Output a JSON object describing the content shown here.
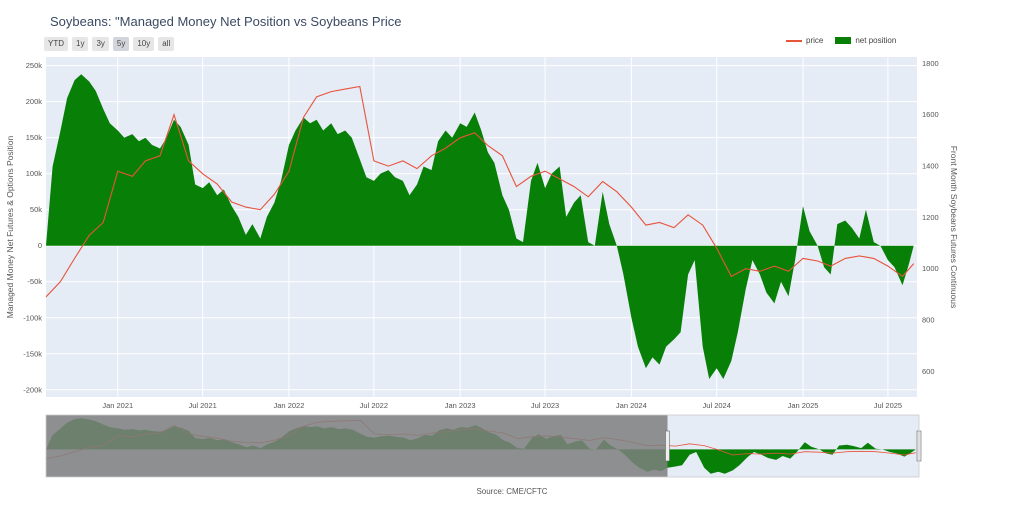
{
  "title": "Soybeans: \"Managed Money Net Position vs Soybeans Price",
  "range_buttons": [
    "YTD",
    "1y",
    "3y",
    "5y",
    "10y",
    "all"
  ],
  "active_range": "5y",
  "legend": {
    "price": "price",
    "net": "net position"
  },
  "source": "Source: CME/CFTC",
  "colors": {
    "price": "#e8533b",
    "net": "#088008",
    "plot_bg": "#e5ecf6",
    "range_mask": "#7f7f7f"
  },
  "chart_data": {
    "type": "area",
    "x_start": "2020-08-01",
    "x_end": "2025-09-01",
    "ylabel": "Managed Money Net Futures & Options Position",
    "y2label": "Front Month Soybeans Futures Continuous",
    "ylim": [
      -210000,
      262000
    ],
    "y2lim": [
      500,
      1825
    ],
    "yticks": [
      250000,
      200000,
      150000,
      100000,
      50000,
      0,
      -50000,
      -100000,
      -150000,
      -200000
    ],
    "ytick_labels": [
      "250k",
      "200k",
      "150k",
      "100k",
      "50k",
      "0",
      "-50k",
      "-100k",
      "-150k",
      "-200k"
    ],
    "y2ticks": [
      1800,
      1600,
      1400,
      1200,
      1000,
      800,
      600
    ],
    "y2tick_labels": [
      "1800",
      "1600",
      "1400",
      "1200",
      "1000",
      "800",
      "600"
    ],
    "xticks": [
      "2021-01-01",
      "2021-07-01",
      "2022-01-01",
      "2022-07-01",
      "2023-01-01",
      "2023-07-01",
      "2024-01-01",
      "2024-07-01",
      "2025-01-01",
      "2025-07-01"
    ],
    "xtick_labels": [
      "Jan 2021",
      "Jul 2021",
      "Jan 2022",
      "Jul 2022",
      "Jan 2023",
      "Jul 2023",
      "Jan 2024",
      "Jul 2024",
      "Jan 2025",
      "Jul 2025"
    ],
    "rangeslider": {
      "visible_from": "2024-03-15",
      "visible_to": "2025-09-01"
    },
    "series": [
      {
        "name": "net position",
        "axis": "left",
        "fill": "tozero",
        "points": [
          [
            "2020-08-01",
            0
          ],
          [
            "2020-08-15",
            110000
          ],
          [
            "2020-09-01",
            160000
          ],
          [
            "2020-09-15",
            205000
          ],
          [
            "2020-10-01",
            230000
          ],
          [
            "2020-10-15",
            238000
          ],
          [
            "2020-11-01",
            228000
          ],
          [
            "2020-11-15",
            215000
          ],
          [
            "2020-12-01",
            190000
          ],
          [
            "2020-12-15",
            170000
          ],
          [
            "2021-01-01",
            160000
          ],
          [
            "2021-01-15",
            150000
          ],
          [
            "2021-02-01",
            155000
          ],
          [
            "2021-02-15",
            145000
          ],
          [
            "2021-03-01",
            150000
          ],
          [
            "2021-03-15",
            140000
          ],
          [
            "2021-04-01",
            135000
          ],
          [
            "2021-04-15",
            150000
          ],
          [
            "2021-05-01",
            175000
          ],
          [
            "2021-05-15",
            165000
          ],
          [
            "2021-06-01",
            140000
          ],
          [
            "2021-06-15",
            85000
          ],
          [
            "2021-07-01",
            80000
          ],
          [
            "2021-07-15",
            88000
          ],
          [
            "2021-08-01",
            70000
          ],
          [
            "2021-08-15",
            78000
          ],
          [
            "2021-09-01",
            55000
          ],
          [
            "2021-09-15",
            40000
          ],
          [
            "2021-10-01",
            15000
          ],
          [
            "2021-10-15",
            30000
          ],
          [
            "2021-11-01",
            10000
          ],
          [
            "2021-11-15",
            40000
          ],
          [
            "2021-12-01",
            60000
          ],
          [
            "2021-12-15",
            90000
          ],
          [
            "2022-01-01",
            140000
          ],
          [
            "2022-01-15",
            160000
          ],
          [
            "2022-02-01",
            178000
          ],
          [
            "2022-02-15",
            170000
          ],
          [
            "2022-03-01",
            175000
          ],
          [
            "2022-03-15",
            160000
          ],
          [
            "2022-04-01",
            170000
          ],
          [
            "2022-04-15",
            155000
          ],
          [
            "2022-05-01",
            160000
          ],
          [
            "2022-05-15",
            150000
          ],
          [
            "2022-06-01",
            120000
          ],
          [
            "2022-06-15",
            95000
          ],
          [
            "2022-07-01",
            90000
          ],
          [
            "2022-07-15",
            100000
          ],
          [
            "2022-08-01",
            105000
          ],
          [
            "2022-08-15",
            95000
          ],
          [
            "2022-09-01",
            90000
          ],
          [
            "2022-09-15",
            70000
          ],
          [
            "2022-10-01",
            85000
          ],
          [
            "2022-10-15",
            110000
          ],
          [
            "2022-11-01",
            105000
          ],
          [
            "2022-11-15",
            145000
          ],
          [
            "2022-12-01",
            160000
          ],
          [
            "2022-12-15",
            150000
          ],
          [
            "2023-01-01",
            170000
          ],
          [
            "2023-01-15",
            165000
          ],
          [
            "2023-02-01",
            185000
          ],
          [
            "2023-02-15",
            160000
          ],
          [
            "2023-03-01",
            130000
          ],
          [
            "2023-03-15",
            115000
          ],
          [
            "2023-04-01",
            70000
          ],
          [
            "2023-04-15",
            50000
          ],
          [
            "2023-05-01",
            10000
          ],
          [
            "2023-05-15",
            5000
          ],
          [
            "2023-06-01",
            90000
          ],
          [
            "2023-06-15",
            115000
          ],
          [
            "2023-07-01",
            80000
          ],
          [
            "2023-07-15",
            100000
          ],
          [
            "2023-08-01",
            110000
          ],
          [
            "2023-08-15",
            40000
          ],
          [
            "2023-09-01",
            60000
          ],
          [
            "2023-09-15",
            70000
          ],
          [
            "2023-10-01",
            5000
          ],
          [
            "2023-10-15",
            0
          ],
          [
            "2023-11-01",
            75000
          ],
          [
            "2023-11-15",
            30000
          ],
          [
            "2023-12-01",
            0
          ],
          [
            "2023-12-15",
            -40000
          ],
          [
            "2024-01-01",
            -100000
          ],
          [
            "2024-01-15",
            -140000
          ],
          [
            "2024-02-01",
            -170000
          ],
          [
            "2024-02-15",
            -155000
          ],
          [
            "2024-03-01",
            -165000
          ],
          [
            "2024-03-15",
            -140000
          ],
          [
            "2024-04-01",
            -130000
          ],
          [
            "2024-04-15",
            -120000
          ],
          [
            "2024-05-01",
            -40000
          ],
          [
            "2024-05-15",
            -20000
          ],
          [
            "2024-06-01",
            -140000
          ],
          [
            "2024-06-15",
            -185000
          ],
          [
            "2024-07-01",
            -170000
          ],
          [
            "2024-07-15",
            -185000
          ],
          [
            "2024-08-01",
            -160000
          ],
          [
            "2024-08-15",
            -120000
          ],
          [
            "2024-09-01",
            -60000
          ],
          [
            "2024-09-15",
            -20000
          ],
          [
            "2024-10-01",
            -40000
          ],
          [
            "2024-10-15",
            -65000
          ],
          [
            "2024-11-01",
            -80000
          ],
          [
            "2024-11-15",
            -50000
          ],
          [
            "2024-12-01",
            -70000
          ],
          [
            "2024-12-15",
            -20000
          ],
          [
            "2025-01-01",
            55000
          ],
          [
            "2025-01-15",
            20000
          ],
          [
            "2025-02-01",
            0
          ],
          [
            "2025-02-15",
            -30000
          ],
          [
            "2025-03-01",
            -40000
          ],
          [
            "2025-03-15",
            30000
          ],
          [
            "2025-04-01",
            35000
          ],
          [
            "2025-04-15",
            25000
          ],
          [
            "2025-05-01",
            10000
          ],
          [
            "2025-05-15",
            50000
          ],
          [
            "2025-06-01",
            5000
          ],
          [
            "2025-06-15",
            0
          ],
          [
            "2025-07-01",
            -20000
          ],
          [
            "2025-07-15",
            -30000
          ],
          [
            "2025-08-01",
            -55000
          ],
          [
            "2025-08-15",
            -25000
          ],
          [
            "2025-08-25",
            0
          ]
        ]
      },
      {
        "name": "price",
        "axis": "right",
        "type": "line",
        "points": [
          [
            "2020-08-01",
            890
          ],
          [
            "2020-09-01",
            950
          ],
          [
            "2020-10-01",
            1040
          ],
          [
            "2020-11-01",
            1130
          ],
          [
            "2020-12-01",
            1180
          ],
          [
            "2021-01-01",
            1380
          ],
          [
            "2021-02-01",
            1360
          ],
          [
            "2021-03-01",
            1420
          ],
          [
            "2021-04-01",
            1440
          ],
          [
            "2021-05-01",
            1600
          ],
          [
            "2021-06-01",
            1420
          ],
          [
            "2021-07-01",
            1370
          ],
          [
            "2021-08-01",
            1330
          ],
          [
            "2021-09-01",
            1260
          ],
          [
            "2021-10-01",
            1240
          ],
          [
            "2021-11-01",
            1230
          ],
          [
            "2021-12-01",
            1290
          ],
          [
            "2022-01-01",
            1380
          ],
          [
            "2022-02-01",
            1590
          ],
          [
            "2022-03-01",
            1670
          ],
          [
            "2022-04-01",
            1690
          ],
          [
            "2022-05-01",
            1700
          ],
          [
            "2022-06-01",
            1710
          ],
          [
            "2022-07-01",
            1420
          ],
          [
            "2022-08-01",
            1400
          ],
          [
            "2022-09-01",
            1420
          ],
          [
            "2022-10-01",
            1390
          ],
          [
            "2022-11-01",
            1440
          ],
          [
            "2022-12-01",
            1470
          ],
          [
            "2023-01-01",
            1510
          ],
          [
            "2023-02-01",
            1530
          ],
          [
            "2023-03-01",
            1480
          ],
          [
            "2023-04-01",
            1440
          ],
          [
            "2023-05-01",
            1320
          ],
          [
            "2023-06-01",
            1360
          ],
          [
            "2023-07-01",
            1380
          ],
          [
            "2023-08-01",
            1350
          ],
          [
            "2023-09-01",
            1320
          ],
          [
            "2023-10-01",
            1280
          ],
          [
            "2023-11-01",
            1340
          ],
          [
            "2023-12-01",
            1300
          ],
          [
            "2024-01-01",
            1240
          ],
          [
            "2024-02-01",
            1170
          ],
          [
            "2024-03-01",
            1180
          ],
          [
            "2024-04-01",
            1160
          ],
          [
            "2024-05-01",
            1210
          ],
          [
            "2024-06-01",
            1170
          ],
          [
            "2024-07-01",
            1080
          ],
          [
            "2024-08-01",
            970
          ],
          [
            "2024-09-01",
            1000
          ],
          [
            "2024-10-01",
            990
          ],
          [
            "2024-11-01",
            1010
          ],
          [
            "2024-12-01",
            990
          ],
          [
            "2025-01-01",
            1040
          ],
          [
            "2025-02-01",
            1030
          ],
          [
            "2025-03-01",
            1010
          ],
          [
            "2025-04-01",
            1040
          ],
          [
            "2025-05-01",
            1050
          ],
          [
            "2025-06-01",
            1040
          ],
          [
            "2025-07-01",
            1010
          ],
          [
            "2025-08-01",
            970
          ],
          [
            "2025-08-25",
            1020
          ]
        ]
      }
    ]
  }
}
